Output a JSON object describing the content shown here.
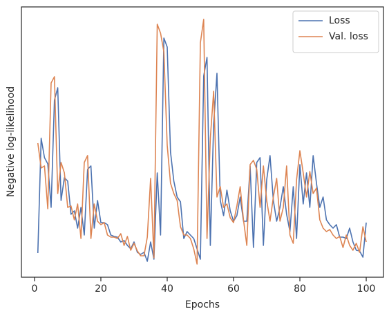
{
  "chart_data": {
    "type": "line",
    "xlabel": "Epochs",
    "ylabel": "Negative log-likelihood",
    "x": [
      1,
      2,
      3,
      4,
      5,
      6,
      7,
      8,
      9,
      10,
      11,
      12,
      13,
      14,
      15,
      16,
      17,
      18,
      19,
      20,
      21,
      22,
      23,
      24,
      25,
      26,
      27,
      28,
      29,
      30,
      31,
      32,
      33,
      34,
      35,
      36,
      37,
      38,
      39,
      40,
      41,
      42,
      43,
      44,
      45,
      46,
      47,
      48,
      49,
      50,
      51,
      52,
      53,
      54,
      55,
      56,
      57,
      58,
      59,
      60,
      61,
      62,
      63,
      64,
      65,
      66,
      67,
      68,
      69,
      70,
      71,
      72,
      73,
      74,
      75,
      76,
      77,
      78,
      79,
      80,
      81,
      82,
      83,
      84,
      85,
      86,
      87,
      88,
      89,
      90,
      91,
      92,
      93,
      94,
      95,
      96,
      97,
      98,
      99,
      100
    ],
    "series": [
      {
        "name": "Loss",
        "color": "#4c72b0",
        "values": [
          35,
          201,
          173,
          164,
          101,
          256,
          274,
          111,
          144,
          139,
          91,
          96,
          71,
          101,
          61,
          156,
          161,
          71,
          111,
          79,
          79,
          76,
          61,
          59,
          58,
          51,
          53,
          46,
          41,
          51,
          36,
          33,
          36,
          23,
          51,
          26,
          151,
          61,
          346,
          333,
          181,
          139,
          116,
          109,
          56,
          66,
          61,
          56,
          41,
          26,
          291,
          318,
          46,
          221,
          295,
          111,
          89,
          126,
          96,
          81,
          89,
          116,
          81,
          81,
          161,
          43,
          166,
          173,
          46,
          141,
          176,
          111,
          81,
          101,
          131,
          91,
          66,
          131,
          56,
          163,
          106,
          151,
          101,
          176,
          136,
          101,
          116,
          83,
          76,
          71,
          76,
          58,
          58,
          56,
          71,
          51,
          39,
          38,
          29,
          79
        ]
      },
      {
        "name": "Val. loss",
        "color": "#dd8452",
        "values": [
          194,
          158,
          161,
          99,
          281,
          290,
          121,
          166,
          151,
          101,
          103,
          83,
          106,
          56,
          166,
          176,
          56,
          106,
          81,
          76,
          79,
          61,
          58,
          58,
          56,
          63,
          46,
          59,
          39,
          49,
          38,
          31,
          31,
          58,
          143,
          28,
          366,
          353,
          326,
          191,
          136,
          121,
          111,
          73,
          61,
          61,
          56,
          41,
          19,
          339,
          373,
          56,
          201,
          269,
          116,
          131,
          101,
          106,
          86,
          79,
          103,
          131,
          83,
          46,
          163,
          169,
          156,
          101,
          161,
          111,
          81,
          116,
          143,
          81,
          101,
          161,
          61,
          49,
          141,
          183,
          151,
          116,
          153,
          121,
          129,
          83,
          71,
          66,
          69,
          61,
          56,
          59,
          43,
          61,
          46,
          39,
          49,
          36,
          73,
          51
        ]
      }
    ],
    "xlim": [
      -3.95,
      105.2
    ],
    "ylim": [
      0,
      391
    ],
    "xticks": [
      0,
      20,
      40,
      60,
      80,
      100
    ],
    "grid": false,
    "legend": "upper right"
  }
}
